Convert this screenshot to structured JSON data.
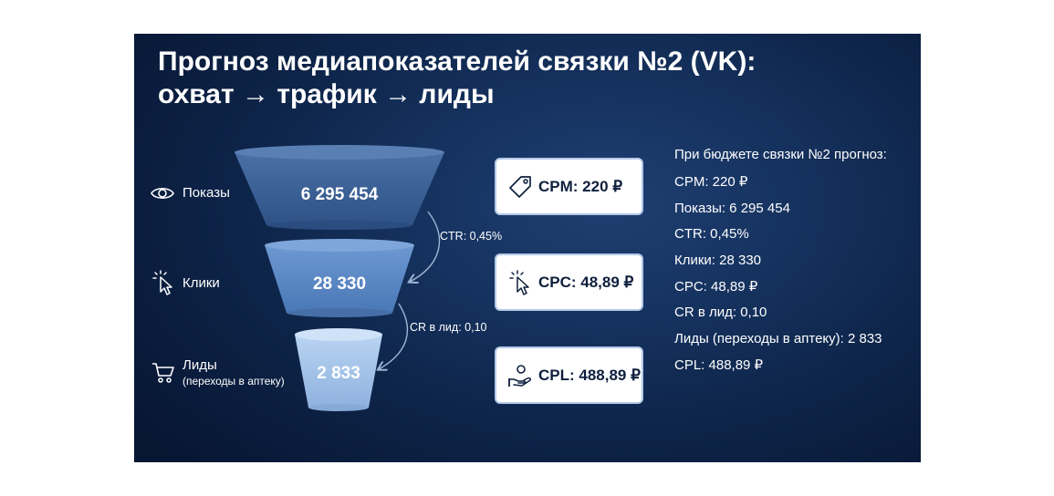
{
  "title": {
    "line1": "Прогноз медиапоказателей связки №2 (VK):",
    "line2": "охват → трафик → лиды"
  },
  "funnel": {
    "stages": [
      {
        "label": "Показы",
        "sublabel": "",
        "value": "6 295 454",
        "icon": "eye-icon"
      },
      {
        "label": "Клики",
        "sublabel": "",
        "value": "28 330",
        "icon": "cursor-click-icon"
      },
      {
        "label": "Лиды",
        "sublabel": "(переходы в аптеку)",
        "value": "2 833",
        "icon": "cart-icon"
      }
    ],
    "rates": [
      "CTR: 0,45%",
      "CR в лид: 0,10"
    ]
  },
  "cards": [
    {
      "text": "CPM: 220 ₽",
      "icon": "price-tag-icon"
    },
    {
      "text": "CPC: 48,89 ₽",
      "icon": "cursor-click-icon"
    },
    {
      "text": "CPL: 488,89 ₽",
      "icon": "hand-coin-icon"
    }
  ],
  "summary": {
    "intro": "При бюджете связки №2 прогноз:",
    "lines": [
      "CPM: 220 ₽",
      "Показы: 6 295 454",
      "CTR: 0,45%",
      "Клики: 28 330",
      "CPC: 48,89 ₽",
      "CR в лид: 0,10",
      "Лиды (переходы в аптеку): 2 833",
      "CPL: 488,89 ₽"
    ]
  },
  "colors": {
    "background": "#0d2347",
    "funnel_top": "#3b5f93",
    "funnel_mid": "#5a86c2",
    "funnel_bottom": "#a8c6ea",
    "card_border": "#b3c9e8",
    "card_text": "#0e1f3d"
  }
}
